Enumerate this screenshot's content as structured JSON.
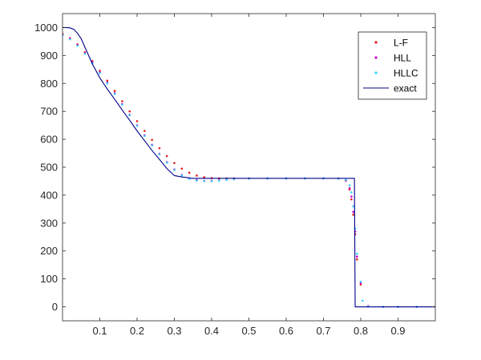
{
  "chart_data": {
    "type": "scatter",
    "xlim": [
      0,
      1
    ],
    "ylim": [
      -50,
      1050
    ],
    "x_ticks": [
      0.1,
      0.2,
      0.3,
      0.4,
      0.5,
      0.6,
      0.7,
      0.8,
      0.9
    ],
    "x_tick_labels": [
      "0.1",
      "0.2",
      "0.3",
      "0.4",
      "0.5",
      "0.6",
      "0.7",
      "0.8",
      "0.9"
    ],
    "y_ticks": [
      0,
      100,
      200,
      300,
      400,
      500,
      600,
      700,
      800,
      900,
      1000
    ],
    "y_tick_labels": [
      "0",
      "100",
      "200",
      "300",
      "400",
      "500",
      "600",
      "700",
      "800",
      "900",
      "1000"
    ],
    "grid": false,
    "legend_position": "top-right",
    "series": [
      {
        "name": "L-F",
        "style": "dots",
        "color": "#e41a1c",
        "x": [
          0.0,
          0.02,
          0.04,
          0.06,
          0.08,
          0.1,
          0.12,
          0.14,
          0.16,
          0.18,
          0.2,
          0.22,
          0.24,
          0.26,
          0.28,
          0.3,
          0.32,
          0.34,
          0.36,
          0.38,
          0.4,
          0.42,
          0.44,
          0.46,
          0.5,
          0.55,
          0.6,
          0.65,
          0.7,
          0.74,
          0.76,
          0.77,
          0.775,
          0.78,
          0.785,
          0.79,
          0.8,
          0.82,
          0.86,
          0.9,
          0.95,
          1.0
        ],
        "y": [
          978,
          962,
          940,
          912,
          880,
          845,
          810,
          773,
          736,
          700,
          665,
          630,
          598,
          568,
          540,
          515,
          495,
          480,
          470,
          464,
          461,
          460,
          460,
          460,
          460,
          460,
          460,
          460,
          460,
          460,
          452,
          420,
          385,
          330,
          260,
          170,
          80,
          2,
          0,
          0,
          0,
          0
        ]
      },
      {
        "name": "HLL",
        "style": "dots",
        "color": "#cc00cc",
        "x": [
          0.0,
          0.02,
          0.04,
          0.06,
          0.08,
          0.1,
          0.12,
          0.14,
          0.16,
          0.18,
          0.2,
          0.22,
          0.24,
          0.26,
          0.28,
          0.3,
          0.32,
          0.34,
          0.36,
          0.38,
          0.4,
          0.42,
          0.44,
          0.46,
          0.5,
          0.55,
          0.6,
          0.65,
          0.7,
          0.74,
          0.76,
          0.77,
          0.775,
          0.78,
          0.785,
          0.79,
          0.8,
          0.82,
          0.86,
          0.9,
          0.95,
          1.0
        ],
        "y": [
          975,
          960,
          937,
          908,
          875,
          840,
          803,
          765,
          726,
          688,
          650,
          614,
          580,
          548,
          518,
          492,
          472,
          460,
          454,
          451,
          451,
          453,
          455,
          457,
          459,
          460,
          460,
          460,
          460,
          459,
          452,
          425,
          395,
          340,
          270,
          180,
          85,
          3,
          0,
          0,
          0,
          0
        ]
      },
      {
        "name": "HLLC",
        "style": "dots",
        "color": "#33ccff",
        "x": [
          0.0,
          0.02,
          0.04,
          0.06,
          0.08,
          0.1,
          0.12,
          0.14,
          0.16,
          0.18,
          0.2,
          0.22,
          0.24,
          0.26,
          0.28,
          0.3,
          0.32,
          0.34,
          0.36,
          0.38,
          0.4,
          0.42,
          0.44,
          0.46,
          0.5,
          0.55,
          0.6,
          0.65,
          0.7,
          0.74,
          0.76,
          0.77,
          0.775,
          0.78,
          0.785,
          0.79,
          0.8,
          0.805,
          0.82,
          0.86,
          0.9,
          0.95,
          1.0
        ],
        "y": [
          972,
          958,
          935,
          906,
          872,
          837,
          800,
          762,
          724,
          686,
          648,
          612,
          578,
          546,
          516,
          490,
          470,
          458,
          452,
          450,
          450,
          452,
          455,
          457,
          459,
          460,
          460,
          460,
          460,
          459,
          455,
          435,
          410,
          360,
          280,
          190,
          90,
          22,
          1,
          0,
          0,
          0,
          0
        ]
      },
      {
        "name": "exact",
        "style": "line",
        "color": "#00008b",
        "x": [
          0.0,
          0.01,
          0.02,
          0.03,
          0.04,
          0.05,
          0.06,
          0.08,
          0.1,
          0.12,
          0.14,
          0.16,
          0.18,
          0.2,
          0.22,
          0.24,
          0.26,
          0.28,
          0.3,
          0.32,
          0.34,
          0.345,
          0.35,
          0.36,
          0.5,
          0.7,
          0.783,
          0.785,
          0.79,
          0.8,
          0.9,
          1.0
        ],
        "y": [
          1000,
          1000,
          999,
          994,
          980,
          960,
          930,
          870,
          820,
          780,
          743,
          705,
          668,
          630,
          595,
          560,
          528,
          495,
          470,
          465,
          462,
          460,
          460,
          460,
          460,
          460,
          460,
          0,
          0,
          0,
          0,
          0
        ]
      }
    ]
  }
}
